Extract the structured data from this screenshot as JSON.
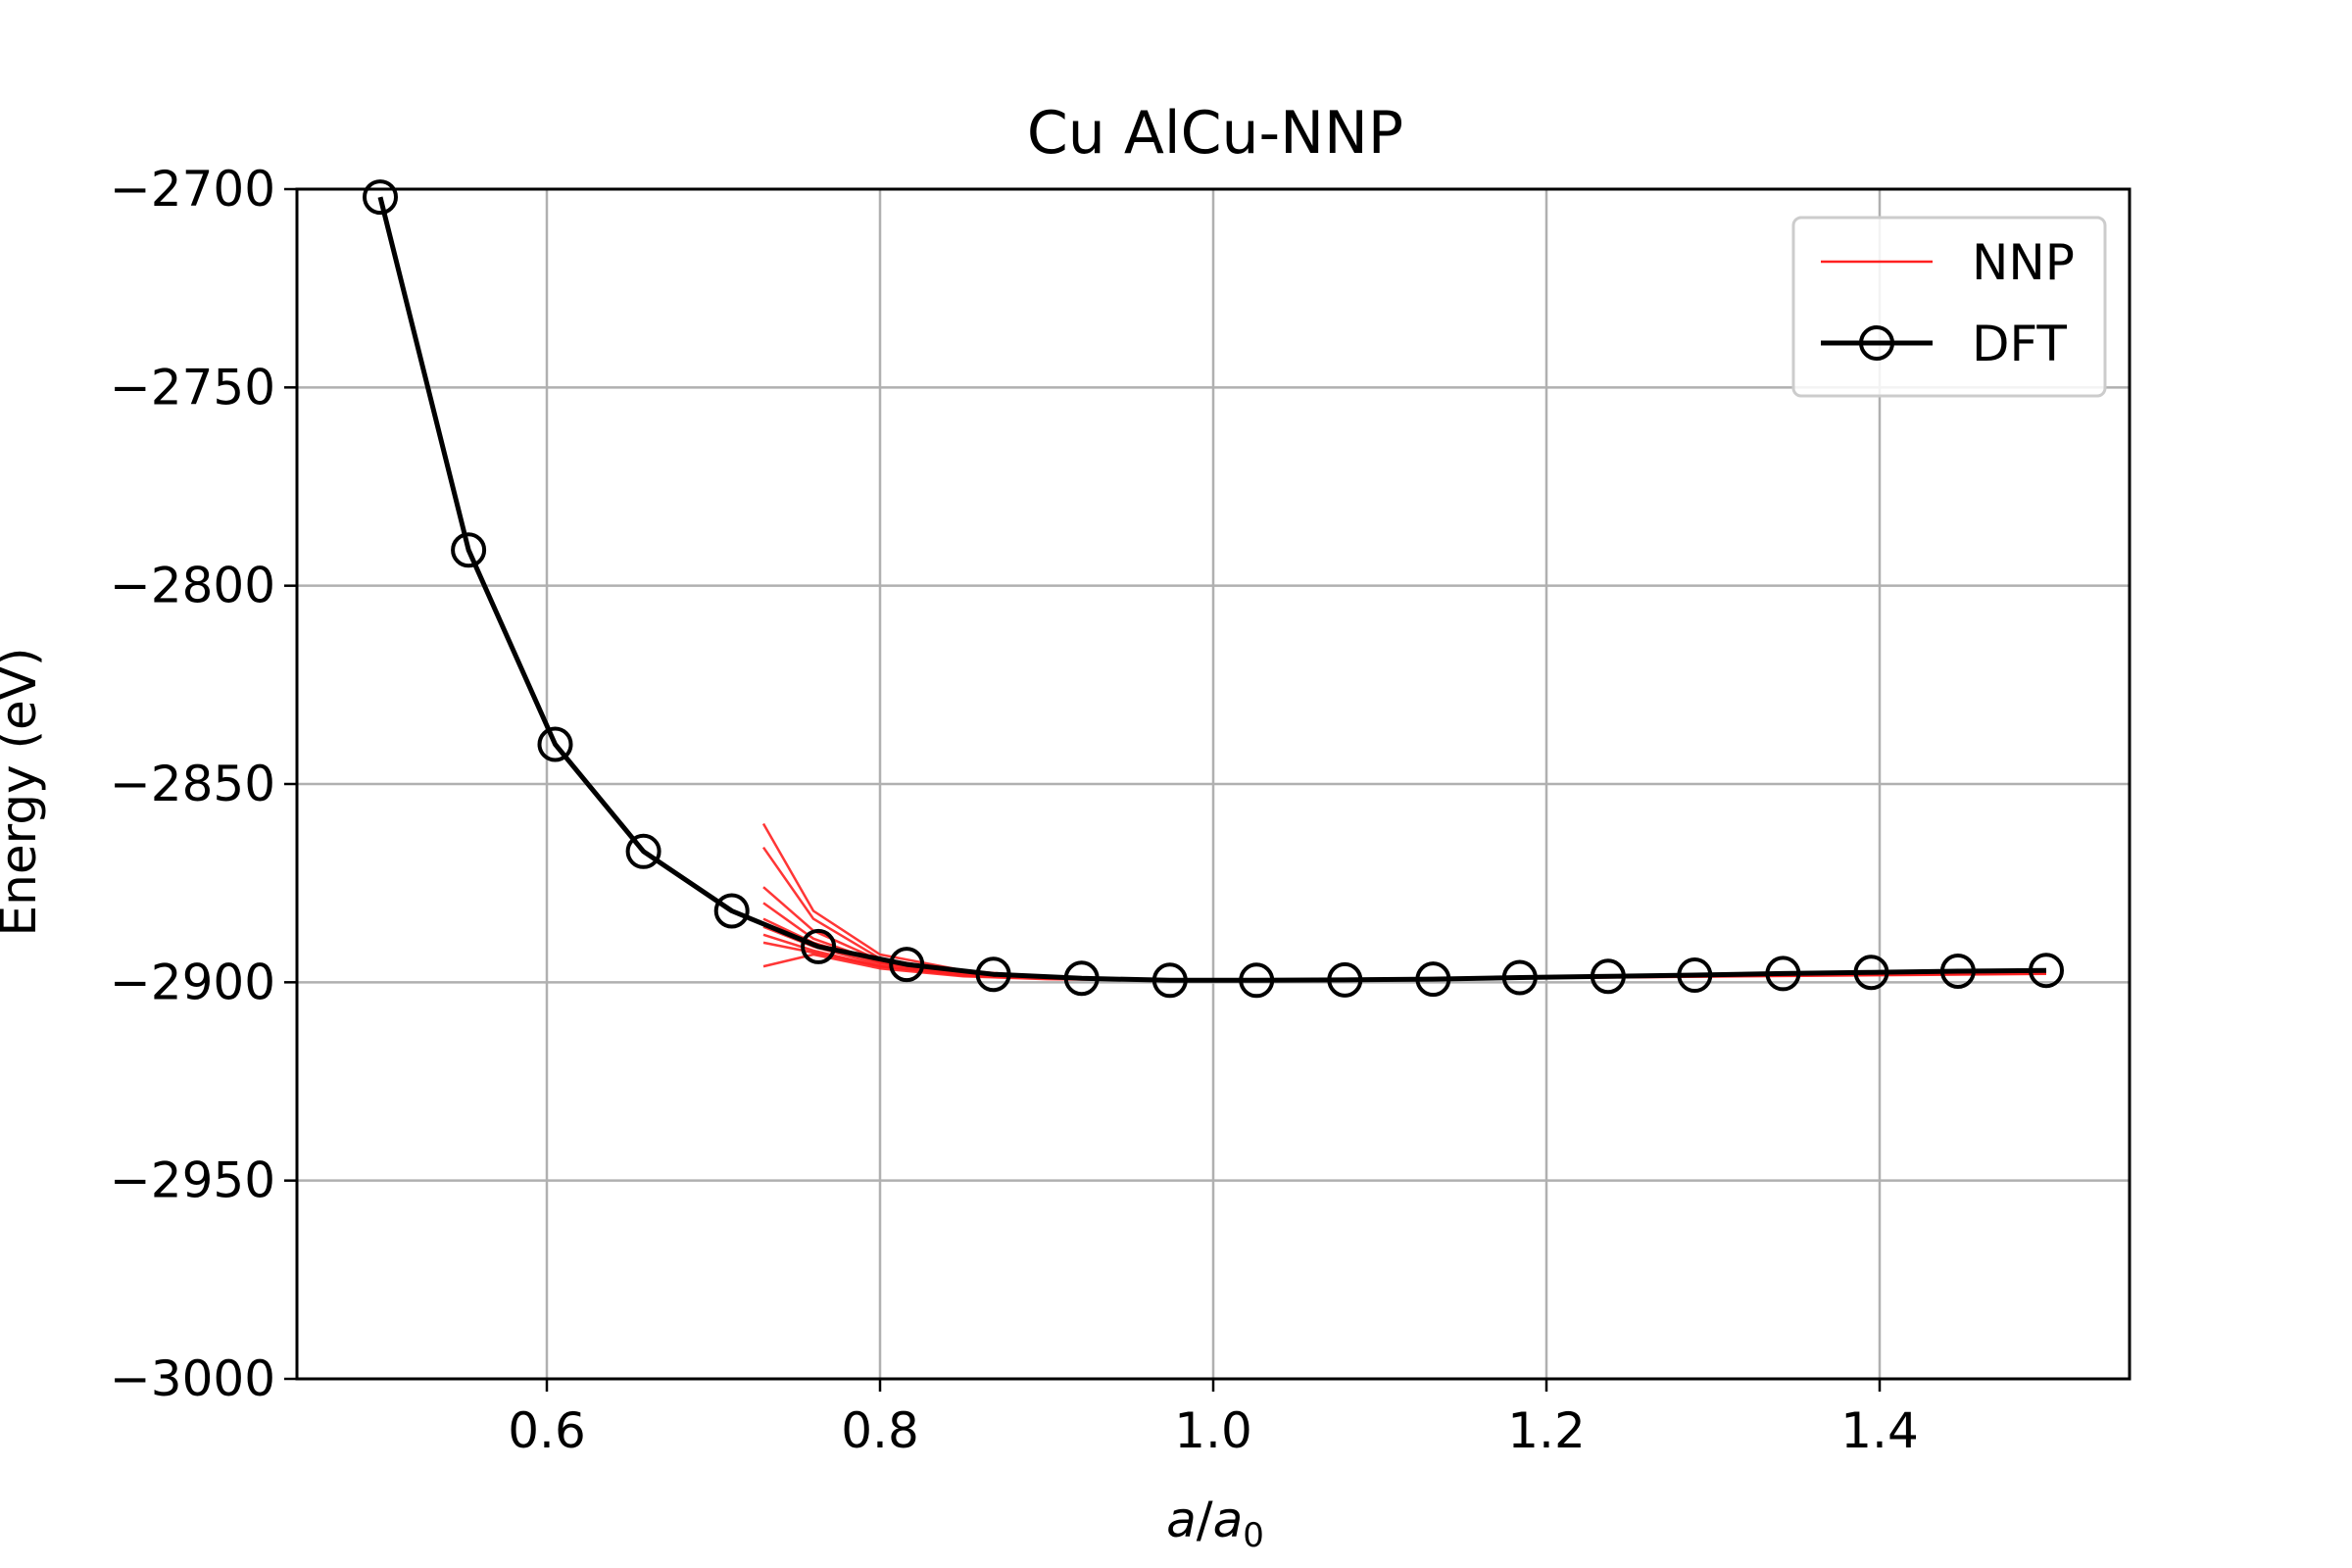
{
  "chart_data": {
    "type": "line",
    "title": "Cu AlCu-NNP",
    "xlabel": {
      "main": "a",
      "slash": "/",
      "base": "a",
      "sub": "0"
    },
    "ylabel": "Energy (eV)",
    "xlim": [
      0.45,
      1.55
    ],
    "ylim": [
      -3000,
      -2700
    ],
    "xticks": [
      0.6,
      0.8,
      1.0,
      1.2,
      1.4
    ],
    "xtick_labels": [
      "0.6",
      "0.8",
      "1.0",
      "1.2",
      "1.4"
    ],
    "yticks": [
      -2700,
      -2750,
      -2800,
      -2850,
      -2900,
      -2950,
      -3000
    ],
    "ytick_labels": [
      "−2700",
      "−2750",
      "−2800",
      "−2850",
      "−2900",
      "−2950",
      "−3000"
    ],
    "grid": true,
    "legend": {
      "position": "top-right",
      "entries": [
        {
          "label": "NNP",
          "style": "thin-line",
          "color": "#ff2020"
        },
        {
          "label": "DFT",
          "style": "line-circle",
          "color": "#000000"
        }
      ]
    },
    "series": [
      {
        "name": "DFT",
        "color": "#000000",
        "marker": "open-circle",
        "x": [
          0.5,
          0.553,
          0.605,
          0.658,
          0.711,
          0.763,
          0.816,
          0.868,
          0.921,
          0.974,
          1.026,
          1.079,
          1.132,
          1.184,
          1.237,
          1.289,
          1.342,
          1.395,
          1.447,
          1.5
        ],
        "y": [
          -2702,
          -2791,
          -2840,
          -2867,
          -2882,
          -2891,
          -2895.5,
          -2898,
          -2899,
          -2899.5,
          -2899.5,
          -2899.4,
          -2899.2,
          -2898.8,
          -2898.5,
          -2898.2,
          -2897.8,
          -2897.5,
          -2897.2,
          -2897
        ]
      },
      {
        "name": "NNP",
        "color": "#ff2020",
        "marker": "none",
        "members": [
          {
            "x": [
              0.73,
              0.76,
              0.8,
              0.85,
              0.9,
              1.0,
              1.2,
              1.5
            ],
            "y": [
              -2860,
              -2882,
              -2893,
              -2897,
              -2898.8,
              -2899.5,
              -2898.8,
              -2897
            ]
          },
          {
            "x": [
              0.73,
              0.76,
              0.8,
              0.85,
              0.9,
              1.0,
              1.2,
              1.5
            ],
            "y": [
              -2866,
              -2884,
              -2894,
              -2897.5,
              -2899,
              -2899.5,
              -2898.8,
              -2897.5
            ]
          },
          {
            "x": [
              0.73,
              0.76,
              0.8,
              0.85,
              0.9,
              1.0,
              1.2,
              1.5
            ],
            "y": [
              -2876,
              -2887,
              -2894.5,
              -2897.5,
              -2899,
              -2899.6,
              -2898.9,
              -2897.3
            ]
          },
          {
            "x": [
              0.73,
              0.76,
              0.8,
              0.85,
              0.9,
              1.0,
              1.2,
              1.5
            ],
            "y": [
              -2880,
              -2889,
              -2895,
              -2898,
              -2899,
              -2899.5,
              -2898.7,
              -2897.8
            ]
          },
          {
            "x": [
              0.73,
              0.76,
              0.8,
              0.85,
              0.9,
              1.0,
              1.2,
              1.5
            ],
            "y": [
              -2884,
              -2890,
              -2895,
              -2898,
              -2899,
              -2899.5,
              -2898.8,
              -2897.6
            ]
          },
          {
            "x": [
              0.73,
              0.76,
              0.8,
              0.85,
              0.9,
              1.0,
              1.2,
              1.5
            ],
            "y": [
              -2886,
              -2891,
              -2895.5,
              -2898,
              -2899,
              -2899.5,
              -2898.8,
              -2897.4
            ]
          },
          {
            "x": [
              0.73,
              0.76,
              0.8,
              0.85,
              0.9,
              1.0,
              1.2,
              1.5
            ],
            "y": [
              -2888,
              -2892,
              -2896,
              -2898.2,
              -2899.1,
              -2899.5,
              -2898.9,
              -2897.9
            ]
          },
          {
            "x": [
              0.73,
              0.76,
              0.8,
              0.85,
              0.9,
              1.0,
              1.2,
              1.5
            ],
            "y": [
              -2890,
              -2892.5,
              -2896,
              -2898.3,
              -2899.1,
              -2899.5,
              -2898.8,
              -2897.2
            ]
          },
          {
            "x": [
              0.73,
              0.76,
              0.8,
              0.85,
              0.9,
              1.0,
              1.2,
              1.5
            ],
            "y": [
              -2896,
              -2893,
              -2896.5,
              -2898.5,
              -2899.2,
              -2899.6,
              -2898.9,
              -2897.7
            ]
          }
        ]
      }
    ]
  }
}
